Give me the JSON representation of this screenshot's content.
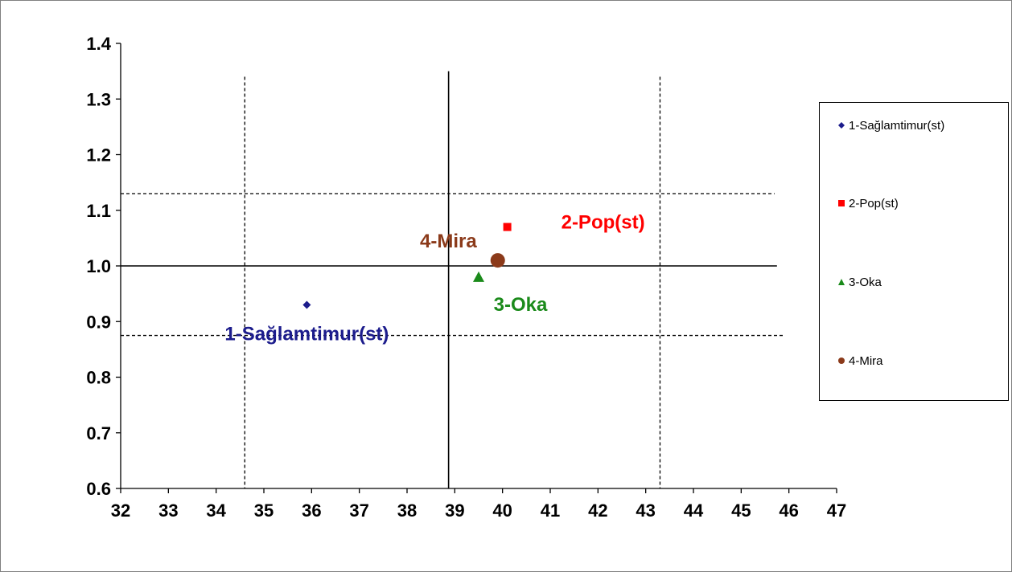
{
  "chart_data": {
    "type": "scatter",
    "title": "",
    "xlabel": "",
    "ylabel": "",
    "xlim": [
      32,
      47
    ],
    "ylim": [
      0.6,
      1.4
    ],
    "xticks": [
      "32",
      "33",
      "34",
      "35",
      "36",
      "37",
      "38",
      "39",
      "40",
      "41",
      "42",
      "43",
      "44",
      "45",
      "46",
      "47"
    ],
    "yticks": [
      "0.6",
      "0.7",
      "0.8",
      "0.9",
      "1.0",
      "1.1",
      "1.2",
      "1.3",
      "1.4"
    ],
    "grid": false,
    "legend_position": "right",
    "series": [
      {
        "name": "1-Sağlamtimur(st)",
        "label": "1-Sağlamtimur(st)",
        "marker": "diamond",
        "color": "#1c1c8c",
        "x": 35.9,
        "y": 0.93
      },
      {
        "name": "2-Pop(st)",
        "label": "2-Pop(st)",
        "marker": "square",
        "color": "#ff0000",
        "x": 40.1,
        "y": 1.07
      },
      {
        "name": "3-Oka",
        "label": "3-Oka",
        "marker": "triangle",
        "color": "#1a8a1a",
        "x": 39.5,
        "y": 0.98
      },
      {
        "name": "4-Mira",
        "label": "4-Mira",
        "marker": "circle",
        "color": "#8b3a1a",
        "x": 39.9,
        "y": 1.01
      }
    ],
    "reference_lines": [
      {
        "orientation": "vertical",
        "value": 38.87,
        "style": "solid"
      },
      {
        "orientation": "horizontal",
        "value": 1.0,
        "style": "solid"
      },
      {
        "orientation": "vertical",
        "value": 34.6,
        "style": "dashed"
      },
      {
        "orientation": "vertical",
        "value": 43.3,
        "style": "dashed"
      },
      {
        "orientation": "horizontal",
        "value": 1.13,
        "style": "dashed"
      },
      {
        "orientation": "horizontal",
        "value": 0.875,
        "style": "dashed"
      }
    ]
  }
}
